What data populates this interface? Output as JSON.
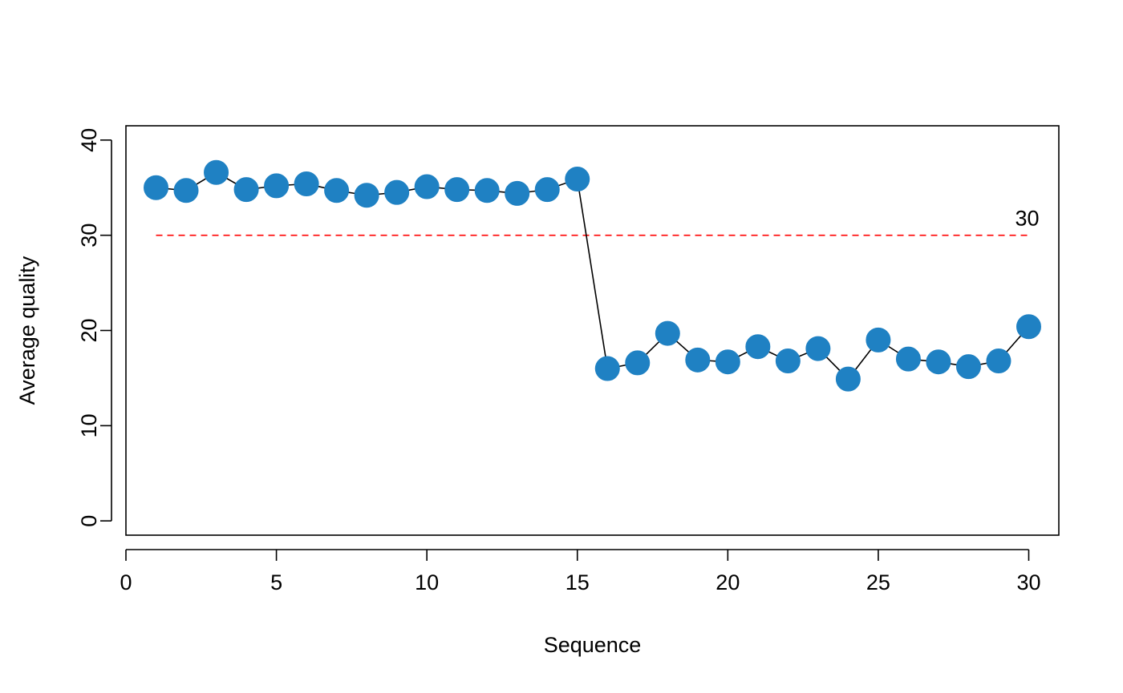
{
  "chart_data": {
    "type": "line",
    "title": "",
    "xlabel": "Sequence",
    "ylabel": "Average quality",
    "xlim": [
      0,
      31
    ],
    "ylim": [
      -1.5,
      41.5
    ],
    "x_ticks": [
      0,
      5,
      10,
      15,
      20,
      25,
      30
    ],
    "y_ticks": [
      0,
      10,
      20,
      30,
      40
    ],
    "grid": false,
    "legend": "none",
    "series": [
      {
        "x": [
          1,
          2,
          3,
          4,
          5,
          6,
          7,
          8,
          9,
          10,
          11,
          12,
          13,
          14,
          15,
          16,
          17,
          18,
          19,
          20,
          21,
          22,
          23,
          24,
          25,
          26,
          27,
          28,
          29,
          30
        ],
        "y": [
          35.0,
          34.7,
          36.6,
          34.8,
          35.2,
          35.4,
          34.7,
          34.2,
          34.5,
          35.1,
          34.8,
          34.7,
          34.4,
          34.8,
          35.9,
          16.0,
          16.6,
          19.7,
          16.9,
          16.7,
          18.3,
          16.8,
          18.1,
          14.9,
          19.0,
          17.0,
          16.7,
          16.2,
          16.8,
          20.4
        ],
        "color": "#1f81c3",
        "line_color": "#000000",
        "marker": "circle"
      }
    ],
    "reference_line": {
      "y": 30,
      "x_range": [
        1,
        30
      ],
      "color": "#ff0000",
      "style": "dashed",
      "label": "30"
    }
  }
}
